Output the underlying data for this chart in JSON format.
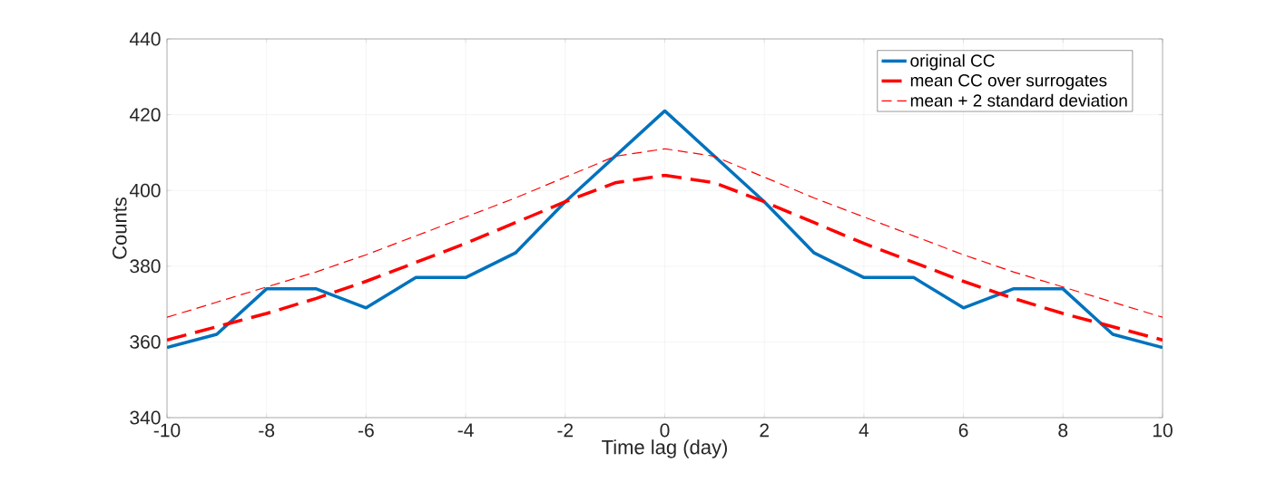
{
  "chart_data": {
    "type": "line",
    "xlabel": "Time lag (day)",
    "ylabel": "Counts",
    "x": [
      -10,
      -9,
      -8,
      -7,
      -6,
      -5,
      -4,
      -3,
      -2,
      -1,
      0,
      1,
      2,
      3,
      4,
      5,
      6,
      7,
      8,
      9,
      10
    ],
    "xlim": [
      -10,
      10
    ],
    "xticks": [
      -10,
      -8,
      -6,
      -4,
      -2,
      0,
      2,
      4,
      6,
      8,
      10
    ],
    "ylim": [
      340,
      440
    ],
    "yticks": [
      340,
      360,
      380,
      400,
      420,
      440
    ],
    "grid": true,
    "legend": "top right",
    "marker": "none",
    "series": [
      {
        "name": "original CC",
        "color": "#0072bd",
        "line_style": "solid",
        "values": [
          358.5,
          362,
          374,
          374,
          369,
          377,
          377,
          383.5,
          397,
          409,
          421,
          409,
          397,
          383.5,
          377,
          377,
          369,
          374,
          374,
          362,
          358.5
        ]
      },
      {
        "name": "mean CC over surrogates",
        "color": "#ff0000",
        "line_style": "dashed",
        "values": [
          360.5,
          364,
          367.5,
          371.5,
          376,
          381,
          386,
          391.5,
          397,
          402,
          404,
          402,
          397,
          391.5,
          386,
          381,
          376,
          371.5,
          367.5,
          364,
          360.5
        ]
      },
      {
        "name": "mean + 2 standard deviation",
        "color": "#ff0000",
        "line_style": "dashed",
        "values": [
          366.5,
          370.5,
          374.5,
          378.5,
          383,
          388,
          393,
          398,
          403.5,
          409,
          411,
          409,
          403.5,
          398,
          393,
          388,
          383,
          378.5,
          374.5,
          370.5,
          366.5
        ]
      }
    ]
  }
}
